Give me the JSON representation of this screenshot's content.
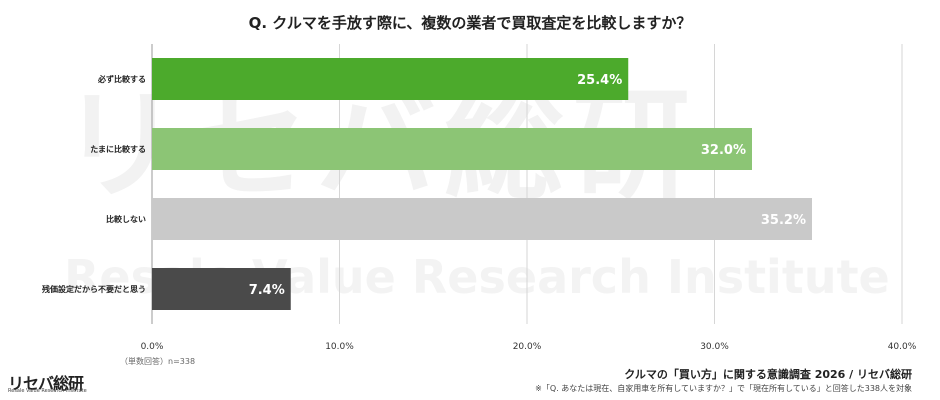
{
  "chart_data": {
    "type": "bar",
    "orientation": "horizontal",
    "title": "Q. クルマを手放す際に、複数の業者で買取査定を比較しますか？",
    "categories": [
      "必ず比較する",
      "たまに比較する",
      "比較しない",
      "残価設定だから不要だと思う"
    ],
    "values": [
      25.4,
      32.0,
      35.2,
      7.4
    ],
    "value_labels": [
      "25.4%",
      "32.0%",
      "35.2%",
      "7.4%"
    ],
    "colors": [
      "#4caa2c",
      "#8cc575",
      "#c9c9c9",
      "#4a4a4a"
    ],
    "xlim": [
      0,
      40
    ],
    "xticks": [
      0,
      10,
      20,
      30,
      40
    ],
    "xtick_labels": [
      "0.0%",
      "10.0%",
      "20.0%",
      "30.0%",
      "40.0%"
    ],
    "grid": true
  },
  "sample_note": "（単数回答）n=338",
  "logo": {
    "text": "リセバ総研",
    "sub": "Resale Value Research Institute"
  },
  "watermark": {
    "main": "リセバ総研",
    "sub": "Resale Value Research Institute"
  },
  "source": "クルマの「買い方」に関する意識調査 2026 / リセバ総研",
  "note": "※「Q. あなたは現在、自家用車を所有していますか？」で「現在所有している」と回答した338人を対象"
}
